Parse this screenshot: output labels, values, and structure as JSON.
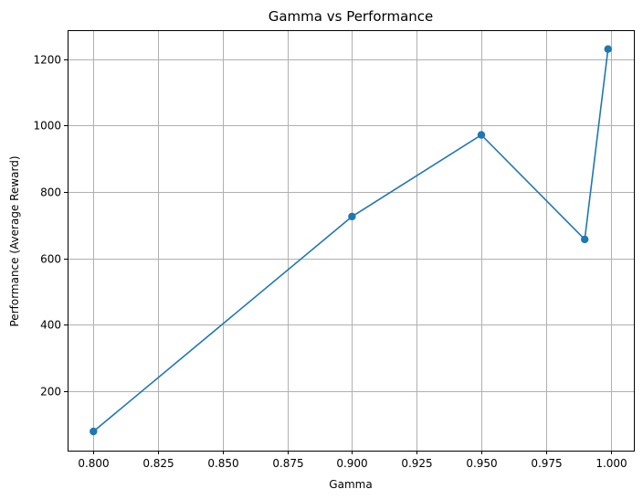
{
  "chart_data": {
    "type": "line",
    "title": "Gamma vs Performance",
    "xlabel": "Gamma",
    "ylabel": "Performance (Average Reward)",
    "x": [
      0.8,
      0.9,
      0.95,
      0.99,
      0.999
    ],
    "series": [
      {
        "values": [
          78,
          726,
          972,
          657,
          1231
        ]
      }
    ],
    "xlim": [
      0.79,
      1.009
    ],
    "ylim": [
      20,
      1288
    ],
    "xticks": [
      0.8,
      0.825,
      0.85,
      0.875,
      0.9,
      0.925,
      0.95,
      0.975,
      1.0
    ],
    "xtick_labels": [
      "0.800",
      "0.825",
      "0.850",
      "0.875",
      "0.900",
      "0.925",
      "0.950",
      "0.975",
      "1.000"
    ],
    "yticks": [
      200,
      400,
      600,
      800,
      1000,
      1200
    ],
    "ytick_labels": [
      "200",
      "400",
      "600",
      "800",
      "1000",
      "1200"
    ],
    "grid": true,
    "marker": "circle",
    "line_color": "#1f77b4"
  }
}
